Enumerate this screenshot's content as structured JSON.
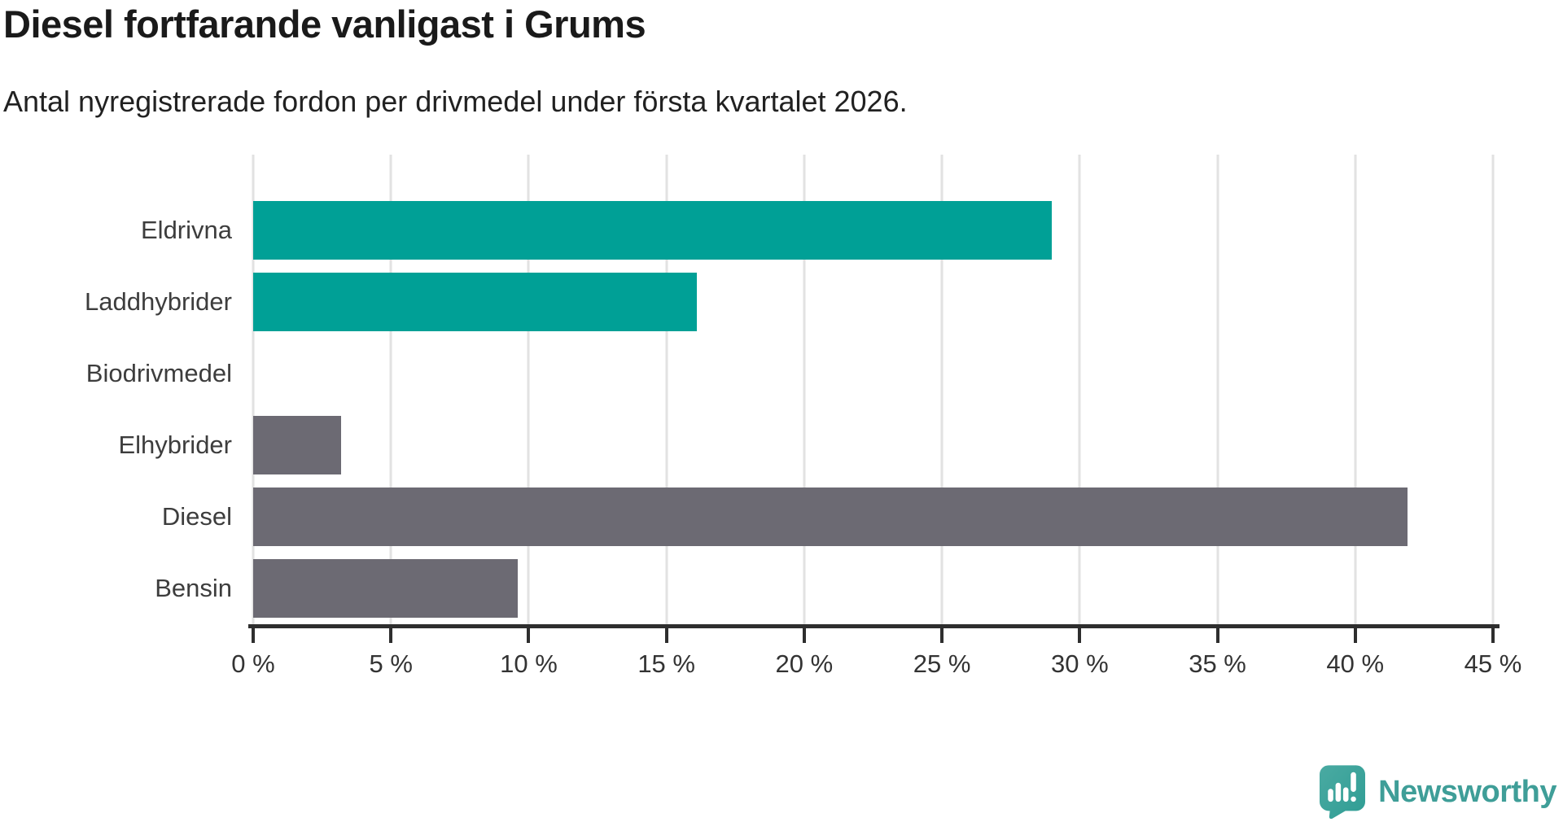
{
  "title": "Diesel fortfarande vanligast i Grums",
  "subtitle": "Antal nyregistrerade fordon per drivmedel under första kvartalet 2026.",
  "chart_data": {
    "type": "bar",
    "orientation": "horizontal",
    "categories": [
      "Eldrivna",
      "Laddhybrider",
      "Biodrivmedel",
      "Elhybrider",
      "Diesel",
      "Bensin"
    ],
    "values": [
      29.0,
      16.1,
      0,
      3.2,
      41.9,
      9.6
    ],
    "unit": "%",
    "xlabel": "",
    "ylabel": "",
    "xlim": [
      0,
      45
    ],
    "tick_values": [
      0,
      5,
      10,
      15,
      20,
      25,
      30,
      35,
      40,
      45
    ],
    "tick_labels": [
      "0 %",
      "5 %",
      "10 %",
      "15 %",
      "20 %",
      "25 %",
      "30 %",
      "35 %",
      "40 %",
      "45 %"
    ],
    "grid": true,
    "legend": false,
    "colors": {
      "teal": "#00A096",
      "gray": "#6C6A73"
    },
    "bar_color_keys": [
      "teal",
      "teal",
      "teal",
      "gray",
      "gray",
      "gray"
    ],
    "gridline_color": "#E2E2E2",
    "axis_color": "#2E2E2E"
  },
  "branding": {
    "logo_text": "Newsworthy",
    "logo_color": "#3F9E98",
    "icon_name": "newsworthy-chart-bubble-icon"
  }
}
